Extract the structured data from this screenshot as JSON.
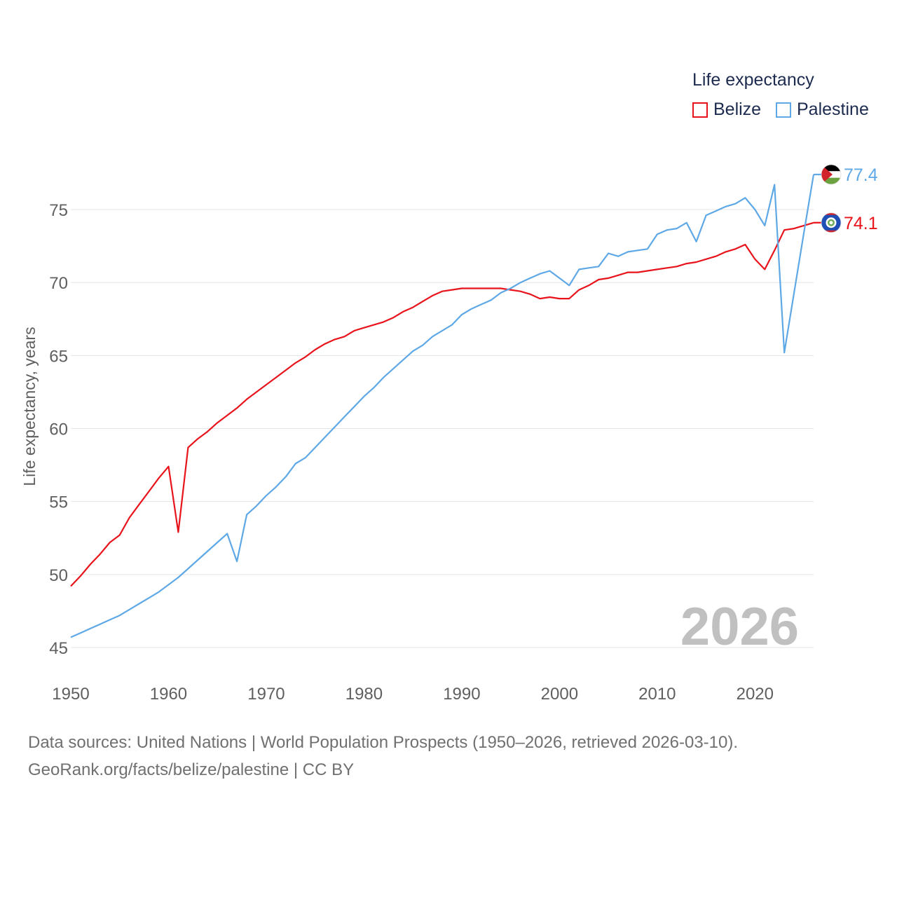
{
  "chart_data": {
    "type": "line",
    "title": "Life expectancy",
    "ylabel": "Life expectancy, years",
    "xlabel": "",
    "xlim": [
      1950,
      2026
    ],
    "ylim": [
      43,
      78
    ],
    "x_ticks": [
      1950,
      1960,
      1970,
      1980,
      1990,
      2000,
      2010,
      2020
    ],
    "y_ticks": [
      45,
      50,
      55,
      60,
      65,
      70,
      75
    ],
    "grid": true,
    "year_label": "2026",
    "series": [
      {
        "name": "Belize",
        "color": "#e8131b",
        "end_label": "74.1",
        "flag_icon": "belize-flag-icon",
        "x": [
          1950,
          1951,
          1952,
          1953,
          1954,
          1955,
          1956,
          1957,
          1958,
          1959,
          1960,
          1961,
          1962,
          1963,
          1964,
          1965,
          1966,
          1967,
          1968,
          1969,
          1970,
          1971,
          1972,
          1973,
          1974,
          1975,
          1976,
          1977,
          1978,
          1979,
          1980,
          1981,
          1982,
          1983,
          1984,
          1985,
          1986,
          1987,
          1988,
          1989,
          1990,
          1991,
          1992,
          1993,
          1994,
          1995,
          1996,
          1997,
          1998,
          1999,
          2000,
          2001,
          2002,
          2003,
          2004,
          2005,
          2006,
          2007,
          2008,
          2009,
          2010,
          2011,
          2012,
          2013,
          2014,
          2015,
          2016,
          2017,
          2018,
          2019,
          2020,
          2021,
          2022,
          2023,
          2024,
          2025,
          2026
        ],
        "values": [
          49.2,
          49.9,
          50.7,
          51.4,
          52.2,
          52.7,
          53.9,
          54.8,
          55.7,
          56.6,
          57.4,
          52.9,
          58.7,
          59.3,
          59.8,
          60.4,
          60.9,
          61.4,
          62.0,
          62.5,
          63.0,
          63.5,
          64.0,
          64.5,
          64.9,
          65.4,
          65.8,
          66.1,
          66.3,
          66.7,
          66.9,
          67.1,
          67.3,
          67.6,
          68.0,
          68.3,
          68.7,
          69.1,
          69.4,
          69.5,
          69.6,
          69.6,
          69.6,
          69.6,
          69.6,
          69.5,
          69.4,
          69.2,
          68.9,
          69.0,
          68.9,
          68.9,
          69.5,
          69.8,
          70.2,
          70.3,
          70.5,
          70.7,
          70.7,
          70.8,
          70.9,
          71.0,
          71.1,
          71.3,
          71.4,
          71.6,
          71.8,
          72.1,
          72.3,
          72.6,
          71.6,
          70.9,
          72.2,
          73.6,
          73.7,
          73.9,
          74.1
        ]
      },
      {
        "name": "Palestine",
        "color": "#5fa8e6",
        "end_label": "77.4",
        "flag_icon": "palestine-flag-icon",
        "x": [
          1950,
          1951,
          1952,
          1953,
          1954,
          1955,
          1956,
          1957,
          1958,
          1959,
          1960,
          1961,
          1962,
          1963,
          1964,
          1965,
          1966,
          1967,
          1968,
          1969,
          1970,
          1971,
          1972,
          1973,
          1974,
          1975,
          1976,
          1977,
          1978,
          1979,
          1980,
          1981,
          1982,
          1983,
          1984,
          1985,
          1986,
          1987,
          1988,
          1989,
          1990,
          1991,
          1992,
          1993,
          1994,
          1995,
          1996,
          1997,
          1998,
          1999,
          2000,
          2001,
          2002,
          2003,
          2004,
          2005,
          2006,
          2007,
          2008,
          2009,
          2010,
          2011,
          2012,
          2013,
          2014,
          2015,
          2016,
          2017,
          2018,
          2019,
          2020,
          2021,
          2022,
          2023,
          2024,
          2025,
          2026
        ],
        "values": [
          45.7,
          46.0,
          46.3,
          46.6,
          46.9,
          47.2,
          47.6,
          48.0,
          48.4,
          48.8,
          49.3,
          49.8,
          50.4,
          51.0,
          51.6,
          52.2,
          52.8,
          50.9,
          54.1,
          54.7,
          55.4,
          56.0,
          56.7,
          57.6,
          58.0,
          58.7,
          59.4,
          60.1,
          60.8,
          61.5,
          62.2,
          62.8,
          63.5,
          64.1,
          64.7,
          65.3,
          65.7,
          66.3,
          66.7,
          67.1,
          67.8,
          68.2,
          68.5,
          68.8,
          69.3,
          69.6,
          70.0,
          70.3,
          70.6,
          70.8,
          70.3,
          69.8,
          70.9,
          71.0,
          71.1,
          72.0,
          71.8,
          72.1,
          72.2,
          72.3,
          73.3,
          73.6,
          73.7,
          74.1,
          72.8,
          74.6,
          74.9,
          75.2,
          75.4,
          75.8,
          75.0,
          73.9,
          76.7,
          65.2,
          69.3,
          73.4,
          77.4
        ]
      }
    ]
  },
  "legend": {
    "title": "Life expectancy",
    "items": [
      "Belize",
      "Palestine"
    ]
  },
  "source": {
    "line1": "Data sources: United Nations | World Population Prospects (1950–2026, retrieved 2026-03-10).",
    "line2": "GeoRank.org/facts/belize/palestine | CC BY"
  }
}
